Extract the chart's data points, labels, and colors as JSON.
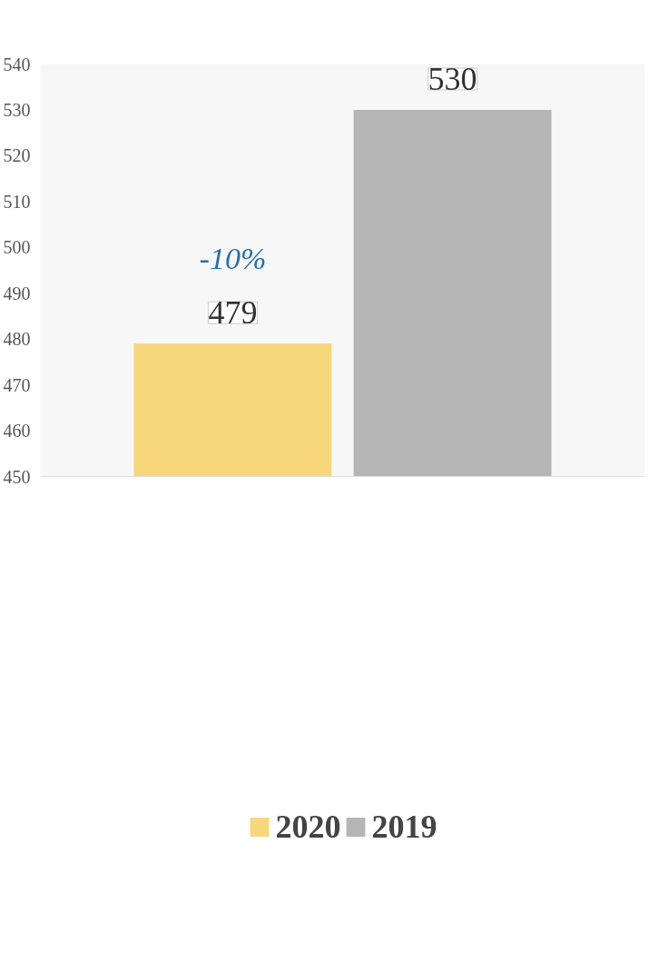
{
  "chart_data": {
    "type": "bar",
    "categories": [
      null
    ],
    "series": [
      {
        "name": "2020",
        "color": "#f6d77c",
        "values": [
          479
        ]
      },
      {
        "name": "2019",
        "color": "#b5b5b5",
        "values": [
          530
        ]
      }
    ],
    "ylim": [
      450,
      540
    ],
    "yticks": [
      450,
      460,
      470,
      480,
      490,
      500,
      510,
      520,
      530,
      540
    ],
    "data_labels": true,
    "annotations": [
      "-10%"
    ],
    "legend": "bottom",
    "grid": false
  }
}
